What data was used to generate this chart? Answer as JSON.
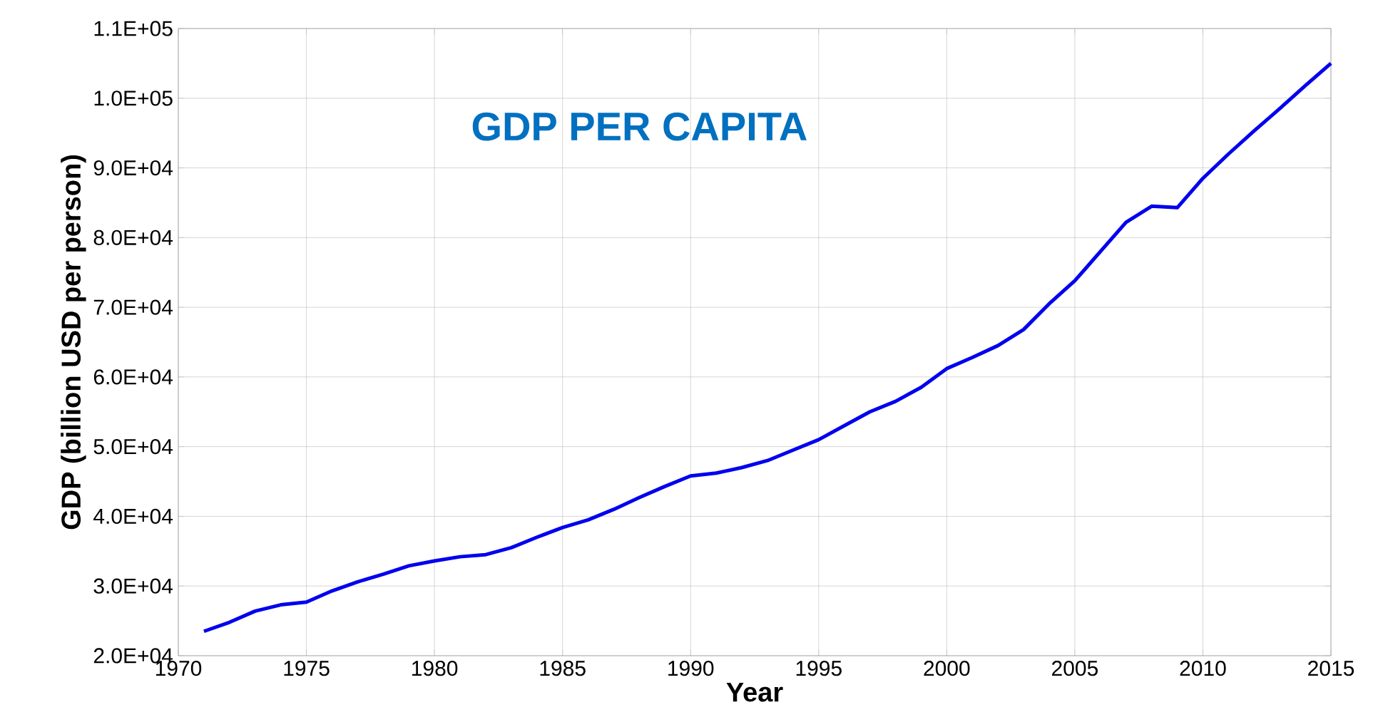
{
  "chart_data": {
    "type": "line",
    "title": "GDP PER CAPITA",
    "xlabel": "Year",
    "ylabel": "GDP (billion USD per person)",
    "x": [
      1971,
      1972,
      1973,
      1974,
      1975,
      1976,
      1977,
      1978,
      1979,
      1980,
      1981,
      1982,
      1983,
      1984,
      1985,
      1986,
      1987,
      1988,
      1989,
      1990,
      1991,
      1992,
      1993,
      1994,
      1995,
      1996,
      1997,
      1998,
      1999,
      2000,
      2001,
      2002,
      2003,
      2004,
      2005,
      2006,
      2007,
      2008,
      2009,
      2010,
      2011,
      2012,
      2013,
      2014,
      2015
    ],
    "series": [
      {
        "color": "#0000ee",
        "values": [
          23500,
          24800,
          26400,
          27300,
          27700,
          29300,
          30600,
          31700,
          32900,
          33600,
          34200,
          34500,
          35500,
          37000,
          38400,
          39500,
          41000,
          42700,
          44300,
          45800,
          46200,
          47000,
          48000,
          49500,
          51000,
          53000,
          55000,
          56500,
          58500,
          61200,
          62800,
          64500,
          66800,
          70500,
          73800,
          78000,
          82200,
          84500,
          84300,
          88500,
          92000,
          95300,
          98500,
          101800,
          105000
        ]
      }
    ],
    "xlim": [
      1970,
      2015
    ],
    "xticks": [
      1970,
      1975,
      1980,
      1985,
      1990,
      1995,
      2000,
      2005,
      2010,
      2015
    ],
    "ylim": [
      20000,
      110000
    ],
    "yticks": [
      {
        "value": 20000,
        "label": "2.0E+04"
      },
      {
        "value": 30000,
        "label": "3.0E+04"
      },
      {
        "value": 40000,
        "label": "4.0E+04"
      },
      {
        "value": 50000,
        "label": "5.0E+04"
      },
      {
        "value": 60000,
        "label": "6.0E+04"
      },
      {
        "value": 70000,
        "label": "7.0E+04"
      },
      {
        "value": 80000,
        "label": "8.0E+04"
      },
      {
        "value": 90000,
        "label": "9.0E+04"
      },
      {
        "value": 100000,
        "label": "1.0E+05"
      },
      {
        "value": 110000,
        "label": "1.1E+05"
      }
    ],
    "grid": true,
    "marker": "none",
    "line_style": "solid"
  }
}
